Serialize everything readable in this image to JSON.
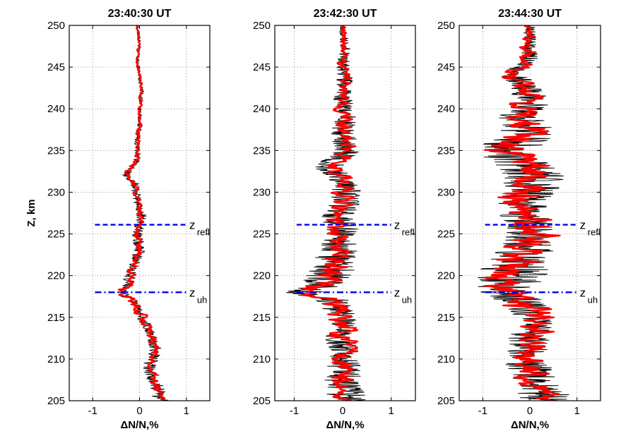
{
  "chart_data": [
    {
      "type": "line",
      "title": "23:40:30 UT",
      "xlabel": "ΔN/N,%",
      "ylabel": "Z, km",
      "xlim": [
        -1.5,
        1.5
      ],
      "ylim": [
        205,
        250
      ],
      "xticks": [
        "-1",
        "0",
        "1"
      ],
      "yticks": [
        "205",
        "210",
        "215",
        "220",
        "225",
        "230",
        "235",
        "240",
        "245",
        "250"
      ],
      "grid": true,
      "series": [
        {
          "role": "raw",
          "color": "#000000",
          "profile": [
            [
              205,
              0.45
            ],
            [
              207,
              0.35
            ],
            [
              209,
              0.2
            ],
            [
              211,
              0.35
            ],
            [
              213,
              0.25
            ],
            [
              215,
              0.05
            ],
            [
              217,
              -0.15
            ],
            [
              218,
              -0.4
            ],
            [
              219,
              -0.25
            ],
            [
              221,
              -0.15
            ],
            [
              223,
              0.0
            ],
            [
              225,
              -0.05
            ],
            [
              227,
              0.05
            ],
            [
              229,
              -0.05
            ],
            [
              231,
              -0.1
            ],
            [
              232,
              -0.3
            ],
            [
              234,
              -0.05
            ],
            [
              236,
              -0.05
            ],
            [
              238,
              0.0
            ],
            [
              240,
              0.0
            ],
            [
              242,
              0.05
            ],
            [
              244,
              0.0
            ],
            [
              246,
              -0.05
            ],
            [
              248,
              0.0
            ],
            [
              250,
              -0.05
            ]
          ],
          "amplitude": [
            [
              205,
              0.12
            ],
            [
              215,
              0.08
            ],
            [
              220,
              0.09
            ],
            [
              230,
              0.07
            ],
            [
              240,
              0.03
            ],
            [
              250,
              0.02
            ]
          ]
        },
        {
          "role": "smoothed",
          "color": "#ff0000",
          "profile": [
            [
              205,
              0.45
            ],
            [
              207,
              0.35
            ],
            [
              209,
              0.2
            ],
            [
              211,
              0.35
            ],
            [
              213,
              0.25
            ],
            [
              215,
              0.05
            ],
            [
              217,
              -0.15
            ],
            [
              218,
              -0.4
            ],
            [
              219,
              -0.25
            ],
            [
              221,
              -0.15
            ],
            [
              223,
              0.0
            ],
            [
              225,
              -0.05
            ],
            [
              227,
              0.05
            ],
            [
              229,
              -0.05
            ],
            [
              231,
              -0.1
            ],
            [
              232,
              -0.3
            ],
            [
              234,
              -0.05
            ],
            [
              236,
              -0.05
            ],
            [
              238,
              0.0
            ],
            [
              240,
              0.0
            ],
            [
              242,
              0.05
            ],
            [
              244,
              0.0
            ],
            [
              246,
              -0.05
            ],
            [
              248,
              0.0
            ],
            [
              250,
              -0.05
            ]
          ],
          "amplitude": [
            [
              205,
              0.05
            ],
            [
              220,
              0.05
            ],
            [
              240,
              0.02
            ],
            [
              250,
              0.01
            ]
          ]
        }
      ],
      "reference_lines": [
        {
          "z": 226.1,
          "x": [
            -0.95,
            1.0
          ],
          "style": "dashed",
          "color": "#0000ee",
          "label": "z",
          "sub": "refl"
        },
        {
          "z": 218.0,
          "x": [
            -0.95,
            1.0
          ],
          "style": "dashdot",
          "color": "#0000ee",
          "label": "z",
          "sub": "uh"
        }
      ]
    },
    {
      "type": "line",
      "title": "23:42:30 UT",
      "xlabel": "ΔN/N,%",
      "ylabel": "",
      "xlim": [
        -1.4,
        1.5
      ],
      "ylim": [
        205,
        250
      ],
      "xticks": [
        "-1",
        "0",
        "1"
      ],
      "yticks": [
        "205",
        "210",
        "215",
        "220",
        "225",
        "230",
        "235",
        "240",
        "245",
        "250"
      ],
      "grid": true,
      "series": [
        {
          "role": "raw",
          "color": "#000000",
          "profile": [
            [
              205,
              0.1
            ],
            [
              207,
              0.0
            ],
            [
              209,
              0.05
            ],
            [
              211,
              0.0
            ],
            [
              213,
              -0.05
            ],
            [
              215,
              0.0
            ],
            [
              217,
              -0.2
            ],
            [
              218,
              -0.8
            ],
            [
              219,
              -0.4
            ],
            [
              221,
              -0.2
            ],
            [
              223,
              -0.1
            ],
            [
              225,
              0.0
            ],
            [
              227,
              -0.1
            ],
            [
              229,
              0.05
            ],
            [
              231,
              0.1
            ],
            [
              233,
              -0.3
            ],
            [
              235,
              0.1
            ],
            [
              237,
              0.0
            ],
            [
              239,
              0.05
            ],
            [
              241,
              0.0
            ],
            [
              243,
              0.05
            ],
            [
              245,
              0.0
            ],
            [
              247,
              0.05
            ],
            [
              250,
              0.0
            ]
          ],
          "amplitude": [
            [
              205,
              0.3
            ],
            [
              215,
              0.2
            ],
            [
              220,
              0.35
            ],
            [
              225,
              0.25
            ],
            [
              235,
              0.2
            ],
            [
              245,
              0.1
            ],
            [
              250,
              0.05
            ]
          ]
        },
        {
          "role": "smoothed",
          "color": "#ff0000",
          "profile": [
            [
              205,
              0.1
            ],
            [
              207,
              0.0
            ],
            [
              209,
              0.05
            ],
            [
              211,
              0.0
            ],
            [
              213,
              -0.05
            ],
            [
              215,
              0.0
            ],
            [
              217,
              -0.2
            ],
            [
              218,
              -0.8
            ],
            [
              219,
              -0.4
            ],
            [
              221,
              -0.2
            ],
            [
              223,
              -0.1
            ],
            [
              225,
              0.0
            ],
            [
              227,
              -0.1
            ],
            [
              229,
              0.05
            ],
            [
              231,
              0.1
            ],
            [
              233,
              -0.3
            ],
            [
              235,
              0.1
            ],
            [
              237,
              0.0
            ],
            [
              239,
              0.05
            ],
            [
              241,
              0.0
            ],
            [
              243,
              0.05
            ],
            [
              245,
              0.0
            ],
            [
              247,
              0.05
            ],
            [
              250,
              0.0
            ]
          ],
          "amplitude": [
            [
              205,
              0.12
            ],
            [
              220,
              0.15
            ],
            [
              235,
              0.1
            ],
            [
              250,
              0.03
            ]
          ]
        }
      ],
      "reference_lines": [
        {
          "z": 226.1,
          "x": [
            -0.95,
            1.0
          ],
          "style": "dashed",
          "color": "#0000ee",
          "label": "z",
          "sub": "refl"
        },
        {
          "z": 218.0,
          "x": [
            -0.95,
            1.0
          ],
          "style": "dashdot",
          "color": "#0000ee",
          "label": "z",
          "sub": "uh"
        }
      ]
    },
    {
      "type": "line",
      "title": "23:44:30 UT",
      "xlabel": "ΔN/N,%",
      "ylabel": "",
      "xlim": [
        -1.5,
        1.5
      ],
      "ylim": [
        205,
        250
      ],
      "xticks": [
        "-1",
        "0",
        "1"
      ],
      "yticks": [
        "205",
        "210",
        "215",
        "220",
        "225",
        "230",
        "235",
        "240",
        "245",
        "250"
      ],
      "grid": true,
      "series": [
        {
          "role": "raw",
          "color": "#000000",
          "profile": [
            [
              205,
              0.4
            ],
            [
              207,
              0.1
            ],
            [
              209,
              0.0
            ],
            [
              211,
              -0.1
            ],
            [
              213,
              0.0
            ],
            [
              215,
              0.1
            ],
            [
              217,
              -0.2
            ],
            [
              218,
              -0.5
            ],
            [
              220,
              -0.4
            ],
            [
              222,
              -0.2
            ],
            [
              224,
              0.0
            ],
            [
              226,
              0.0
            ],
            [
              228,
              -0.2
            ],
            [
              230,
              0.0
            ],
            [
              232,
              0.1
            ],
            [
              234,
              -0.2
            ],
            [
              235,
              -0.6
            ],
            [
              237,
              0.0
            ],
            [
              239,
              -0.2
            ],
            [
              241,
              0.0
            ],
            [
              243,
              -0.1
            ],
            [
              244,
              -0.4
            ],
            [
              246,
              0.0
            ],
            [
              248,
              0.0
            ],
            [
              250,
              0.0
            ]
          ],
          "amplitude": [
            [
              205,
              0.4
            ],
            [
              215,
              0.3
            ],
            [
              220,
              0.55
            ],
            [
              225,
              0.35
            ],
            [
              235,
              0.5
            ],
            [
              245,
              0.15
            ],
            [
              250,
              0.08
            ]
          ]
        },
        {
          "role": "smoothed",
          "color": "#ff0000",
          "profile": [
            [
              205,
              0.4
            ],
            [
              207,
              0.1
            ],
            [
              209,
              0.0
            ],
            [
              211,
              -0.1
            ],
            [
              213,
              0.0
            ],
            [
              215,
              0.1
            ],
            [
              217,
              -0.2
            ],
            [
              218,
              -0.5
            ],
            [
              220,
              -0.4
            ],
            [
              222,
              -0.2
            ],
            [
              224,
              0.0
            ],
            [
              226,
              0.0
            ],
            [
              228,
              -0.2
            ],
            [
              230,
              0.0
            ],
            [
              232,
              0.1
            ],
            [
              234,
              -0.2
            ],
            [
              235,
              -0.6
            ],
            [
              237,
              0.0
            ],
            [
              239,
              -0.2
            ],
            [
              241,
              0.0
            ],
            [
              243,
              -0.1
            ],
            [
              244,
              -0.4
            ],
            [
              246,
              0.0
            ],
            [
              248,
              0.0
            ],
            [
              250,
              0.0
            ]
          ],
          "amplitude": [
            [
              205,
              0.15
            ],
            [
              220,
              0.25
            ],
            [
              235,
              0.25
            ],
            [
              250,
              0.05
            ]
          ]
        }
      ],
      "reference_lines": [
        {
          "z": 226.1,
          "x": [
            -0.95,
            1.0
          ],
          "style": "dashed",
          "color": "#0000ee",
          "label": "z",
          "sub": "refl"
        },
        {
          "z": 218.0,
          "x": [
            -0.95,
            1.0
          ],
          "style": "dashdot",
          "color": "#0000ee",
          "label": "z",
          "sub": "uh"
        }
      ]
    }
  ]
}
